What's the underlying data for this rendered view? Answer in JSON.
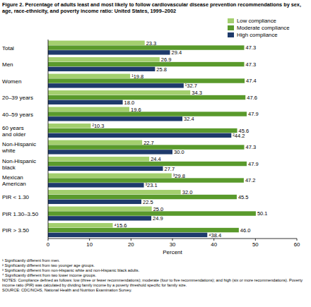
{
  "chart_data": {
    "type": "bar",
    "orientation": "horizontal",
    "title": "Figure 2. Percentage of adults least and most likely to follow cardiovascular disease prevention recommendations by sex, age, race-ethnicity, and poverty income ratio: United States, 1999–2002",
    "x_label": "Percent",
    "categories": [
      "Total",
      "Men",
      "Women",
      "20–39 years",
      "40–59 years",
      "60 years and older",
      "Non-Hispanic white",
      "Non-Hispanic black",
      "Mexican American",
      "PIR < 1.30",
      "PIR 1.30–3.50",
      "PIR > 3.50"
    ],
    "series": [
      {
        "name": "Low compliance",
        "color": "#a3cf6e",
        "values": [
          23.3,
          26.9,
          19.8,
          34.3,
          19.6,
          10.3,
          22.7,
          24.4,
          29.8,
          32.0,
          25.0,
          15.6
        ],
        "value_labels": [
          "23.3",
          "26.9",
          "¹19.8",
          "34.3",
          "19.6",
          "²10.3",
          "22.7",
          "24.4",
          "³29.8",
          "32.0",
          "25.0",
          "⁴15.6"
        ]
      },
      {
        "name": "Moderate compliance",
        "color": "#5a9a2c",
        "values": [
          47.3,
          47.3,
          47.4,
          47.6,
          47.9,
          45.6,
          47.3,
          47.9,
          47.2,
          45.5,
          50.1,
          46.0
        ],
        "value_labels": [
          "47.3",
          "47.3",
          "47.4",
          "47.6",
          "47.9",
          "45.6",
          "47.3",
          "47.9",
          "47.2",
          "45.5",
          "50.1",
          "46.0"
        ]
      },
      {
        "name": "High compliance",
        "color": "#1e3a6b",
        "values": [
          29.4,
          25.8,
          32.7,
          18.0,
          32.4,
          44.2,
          30.0,
          27.7,
          23.1,
          22.5,
          24.9,
          38.4
        ],
        "value_labels": [
          "29.4",
          "25.8",
          "¹32.7",
          "18.0",
          "32.4",
          "²44.2",
          "30.0",
          "27.7",
          "³23.1",
          "22.5",
          "24.9",
          "⁴38.4"
        ]
      }
    ],
    "xlim": [
      0,
      60
    ],
    "xticks": [
      0,
      10,
      20,
      30,
      40,
      50,
      60
    ],
    "grid": false,
    "legend": "upper right",
    "data_labels": true,
    "footnotes": [
      "¹ Significantly different from men.",
      "² Significantly different from two younger age groups.",
      "³ Significantly different from non-Hispanic white and non-Hispanic black adults.",
      "⁴ Significantly different from two lower income groups.",
      "NOTES: Compliance defined as follows: low (three or fewer recommendations); moderate (four to five recommendations); and high (six or more recommendations). Poverty income ratio (PIR) was calculated by dividing family income by a poverty threshold specific for family size.",
      "SOURCE: CDC/NCHS, National Health and Nutrition Examination Survey."
    ]
  }
}
